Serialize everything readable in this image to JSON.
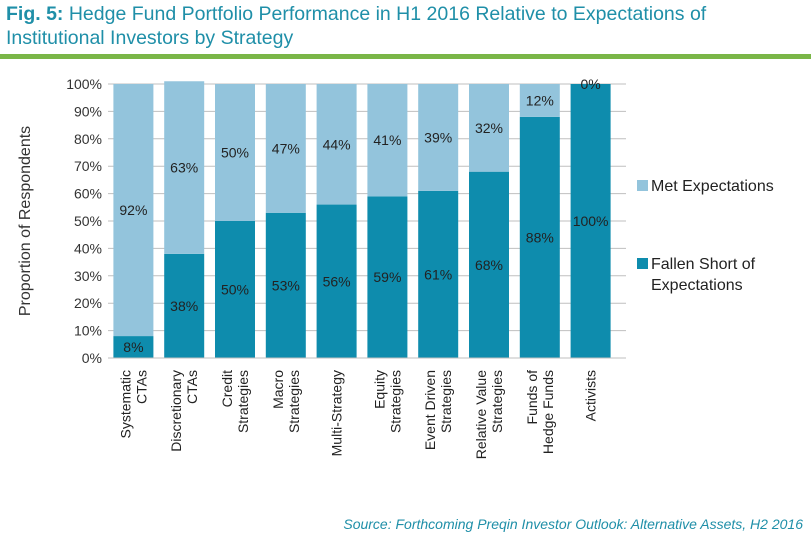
{
  "header": {
    "fig_label": "Fig. 5:",
    "title": "Hedge Fund Portfolio Performance in H1 2016 Relative to Expectations of Institutional Investors by Strategy"
  },
  "source": "Source: Forthcoming Preqin Investor Outlook: Alternative Assets, H2 2016",
  "colors": {
    "met": "#93c4dc",
    "fallen": "#0e8cad",
    "title": "#1f8fa8",
    "rule": "#7ab648",
    "grid": "#bfbfbf"
  },
  "chart_data": {
    "type": "bar",
    "stacked": true,
    "categories": [
      [
        "Systematic",
        "CTAs"
      ],
      [
        "Discretionary",
        "CTAs"
      ],
      [
        "Credit",
        "Strategies"
      ],
      [
        "Macro",
        "Strategies"
      ],
      [
        "Multi-Strategy"
      ],
      [
        "Equity",
        "Strategies"
      ],
      [
        "Event Driven",
        "Strategies"
      ],
      [
        "Relative Value",
        "Strategies"
      ],
      [
        "Funds of",
        "Hedge Funds"
      ],
      [
        "Activists"
      ]
    ],
    "series": [
      {
        "name": "Fallen Short of Expectations",
        "legend_lines": [
          "Fallen Short of",
          "Expectations"
        ],
        "values": [
          8,
          38,
          50,
          53,
          56,
          59,
          61,
          68,
          88,
          100
        ],
        "labels": [
          "8%",
          "38%",
          "50%",
          "53%",
          "56%",
          "59%",
          "61%",
          "68%",
          "88%",
          "100%"
        ]
      },
      {
        "name": "Met Expectations",
        "legend_lines": [
          "Met Expectations"
        ],
        "values": [
          92,
          63,
          50,
          47,
          44,
          41,
          39,
          32,
          12,
          0
        ],
        "labels": [
          "92%",
          "63%",
          "50%",
          "47%",
          "44%",
          "41%",
          "39%",
          "32%",
          "12%",
          "0%"
        ]
      }
    ],
    "ylabel": "Proportion of Respondents",
    "ylim": [
      0,
      100
    ],
    "yticks": [
      "0%",
      "10%",
      "20%",
      "30%",
      "40%",
      "50%",
      "60%",
      "70%",
      "80%",
      "90%",
      "100%"
    ],
    "grid": true,
    "legend_position": "right"
  }
}
